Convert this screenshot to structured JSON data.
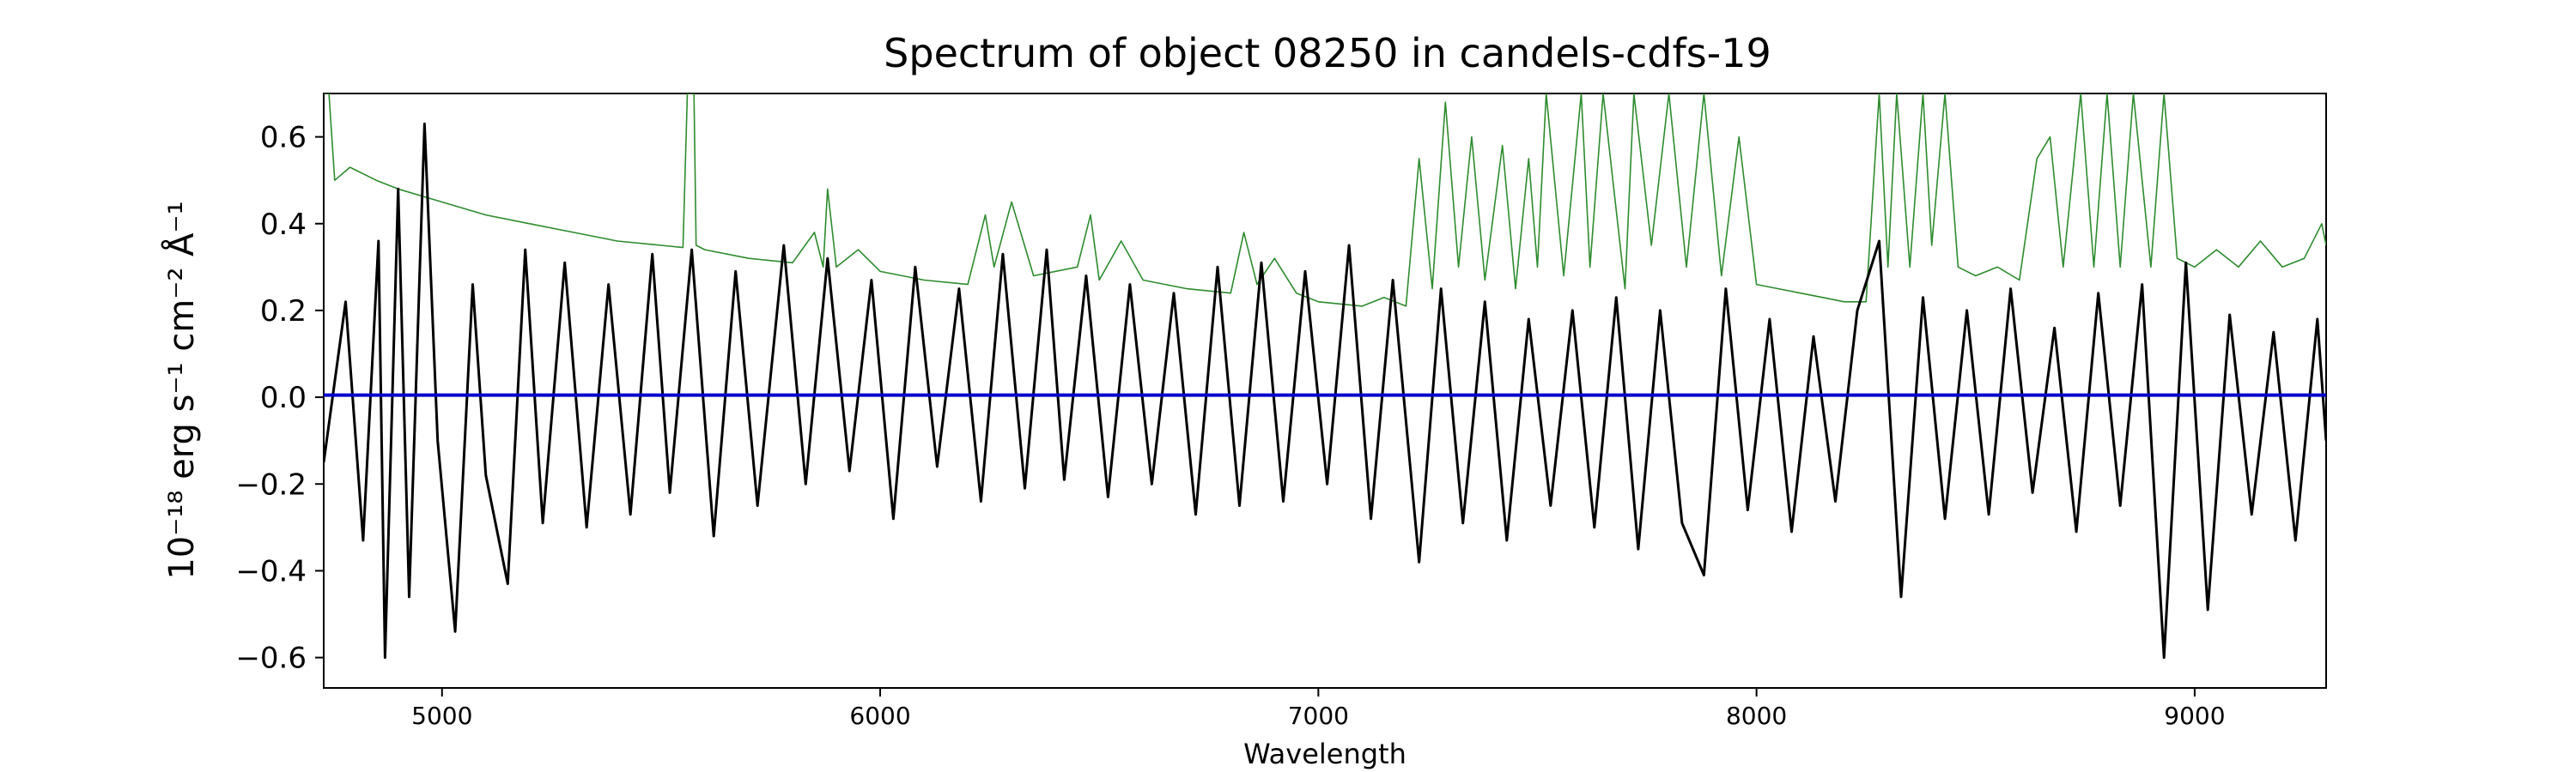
{
  "chart_data": {
    "type": "line",
    "title": "Spectrum of object 08250 in candels-cdfs-19",
    "xlabel": "Wavelength",
    "ylabel": "10⁻¹⁸ erg s⁻¹ cm⁻² Å⁻¹",
    "xlim": [
      4730,
      9300
    ],
    "ylim": [
      -0.67,
      0.7
    ],
    "x_ticks": [
      5000,
      6000,
      7000,
      8000,
      9000
    ],
    "y_ticks": [
      -0.6,
      -0.4,
      -0.2,
      0.0,
      0.2,
      0.4,
      0.6
    ],
    "x_tick_labels": [
      "5000",
      "6000",
      "7000",
      "8000",
      "9000"
    ],
    "y_tick_labels": [
      "−0.6",
      "−0.4",
      "−0.2",
      "0.0",
      "0.2",
      "0.4",
      "0.6"
    ],
    "grid": false,
    "legend": "none",
    "series": [
      {
        "role": "flux",
        "color": "#000000",
        "x": [
          4730,
          4780,
          4820,
          4855,
          4870,
          4900,
          4925,
          4960,
          4990,
          5030,
          5070,
          5100,
          5150,
          5190,
          5230,
          5280,
          5330,
          5380,
          5430,
          5480,
          5520,
          5570,
          5620,
          5670,
          5720,
          5780,
          5830,
          5880,
          5930,
          5980,
          6030,
          6080,
          6130,
          6180,
          6230,
          6280,
          6330,
          6380,
          6420,
          6470,
          6520,
          6570,
          6620,
          6670,
          6720,
          6770,
          6820,
          6870,
          6920,
          6970,
          7020,
          7070,
          7120,
          7170,
          7230,
          7280,
          7330,
          7380,
          7430,
          7480,
          7530,
          7580,
          7630,
          7680,
          7730,
          7780,
          7830,
          7880,
          7930,
          7980,
          8030,
          8080,
          8130,
          8180,
          8230,
          8280,
          8330,
          8380,
          8430,
          8480,
          8530,
          8580,
          8630,
          8680,
          8730,
          8780,
          8830,
          8880,
          8930,
          8980,
          9030,
          9080,
          9130,
          9180,
          9230,
          9280,
          9300
        ],
        "y": [
          -0.15,
          0.22,
          -0.33,
          0.36,
          -0.6,
          0.48,
          -0.46,
          0.63,
          -0.1,
          -0.54,
          0.26,
          -0.18,
          -0.43,
          0.34,
          -0.29,
          0.31,
          -0.3,
          0.26,
          -0.27,
          0.33,
          -0.22,
          0.34,
          -0.32,
          0.29,
          -0.25,
          0.35,
          -0.2,
          0.32,
          -0.17,
          0.27,
          -0.28,
          0.3,
          -0.16,
          0.25,
          -0.24,
          0.33,
          -0.21,
          0.34,
          -0.19,
          0.28,
          -0.23,
          0.26,
          -0.2,
          0.24,
          -0.27,
          0.3,
          -0.25,
          0.31,
          -0.24,
          0.29,
          -0.2,
          0.35,
          -0.28,
          0.27,
          -0.38,
          0.25,
          -0.29,
          0.22,
          -0.33,
          0.18,
          -0.25,
          0.2,
          -0.3,
          0.23,
          -0.35,
          0.2,
          -0.29,
          -0.41,
          0.25,
          -0.26,
          0.18,
          -0.31,
          0.14,
          -0.24,
          0.2,
          0.36,
          -0.46,
          0.23,
          -0.28,
          0.2,
          -0.27,
          0.25,
          -0.22,
          0.16,
          -0.31,
          0.24,
          -0.25,
          0.26,
          -0.6,
          0.31,
          -0.49,
          0.19,
          -0.27,
          0.15,
          -0.33,
          0.18,
          -0.1
        ]
      },
      {
        "role": "error",
        "color": "#2e8b2e",
        "x": [
          4730,
          4742,
          4755,
          4790,
          4850,
          4900,
          5000,
          5100,
          5200,
          5300,
          5400,
          5500,
          5550,
          5560,
          5565,
          5575,
          5580,
          5600,
          5700,
          5800,
          5850,
          5870,
          5880,
          5900,
          5950,
          6000,
          6100,
          6200,
          6240,
          6260,
          6300,
          6350,
          6450,
          6480,
          6500,
          6550,
          6600,
          6700,
          6800,
          6830,
          6860,
          6900,
          6950,
          7000,
          7100,
          7150,
          7200,
          7230,
          7260,
          7290,
          7320,
          7350,
          7380,
          7420,
          7450,
          7480,
          7500,
          7520,
          7560,
          7600,
          7620,
          7650,
          7700,
          7720,
          7760,
          7800,
          7840,
          7880,
          7920,
          7960,
          8000,
          8050,
          8100,
          8150,
          8200,
          8250,
          8280,
          8300,
          8320,
          8350,
          8380,
          8400,
          8430,
          8460,
          8500,
          8550,
          8600,
          8640,
          8670,
          8700,
          8740,
          8770,
          8800,
          8830,
          8860,
          8900,
          8930,
          8960,
          9000,
          9050,
          9100,
          9150,
          9200,
          9250,
          9290,
          9300
        ],
        "y": [
          0.7,
          0.7,
          0.5,
          0.53,
          0.5,
          0.48,
          0.45,
          0.42,
          0.4,
          0.38,
          0.36,
          0.35,
          0.345,
          0.7,
          0.7,
          0.7,
          0.35,
          0.34,
          0.32,
          0.31,
          0.38,
          0.3,
          0.48,
          0.3,
          0.34,
          0.29,
          0.27,
          0.26,
          0.42,
          0.3,
          0.45,
          0.28,
          0.3,
          0.42,
          0.27,
          0.36,
          0.27,
          0.25,
          0.24,
          0.38,
          0.26,
          0.32,
          0.24,
          0.22,
          0.21,
          0.23,
          0.21,
          0.55,
          0.25,
          0.68,
          0.3,
          0.6,
          0.27,
          0.58,
          0.25,
          0.55,
          0.3,
          0.7,
          0.28,
          0.7,
          0.3,
          0.7,
          0.25,
          0.7,
          0.35,
          0.7,
          0.3,
          0.7,
          0.28,
          0.6,
          0.26,
          0.25,
          0.24,
          0.23,
          0.22,
          0.22,
          0.7,
          0.3,
          0.7,
          0.3,
          0.7,
          0.35,
          0.7,
          0.3,
          0.28,
          0.3,
          0.27,
          0.55,
          0.6,
          0.3,
          0.7,
          0.3,
          0.7,
          0.3,
          0.7,
          0.3,
          0.7,
          0.32,
          0.3,
          0.34,
          0.3,
          0.36,
          0.3,
          0.32,
          0.4,
          0.35
        ]
      },
      {
        "role": "zero-model",
        "color": "#0000cc",
        "x": [
          4730,
          9300
        ],
        "y": [
          0.005,
          0.005
        ]
      }
    ]
  }
}
